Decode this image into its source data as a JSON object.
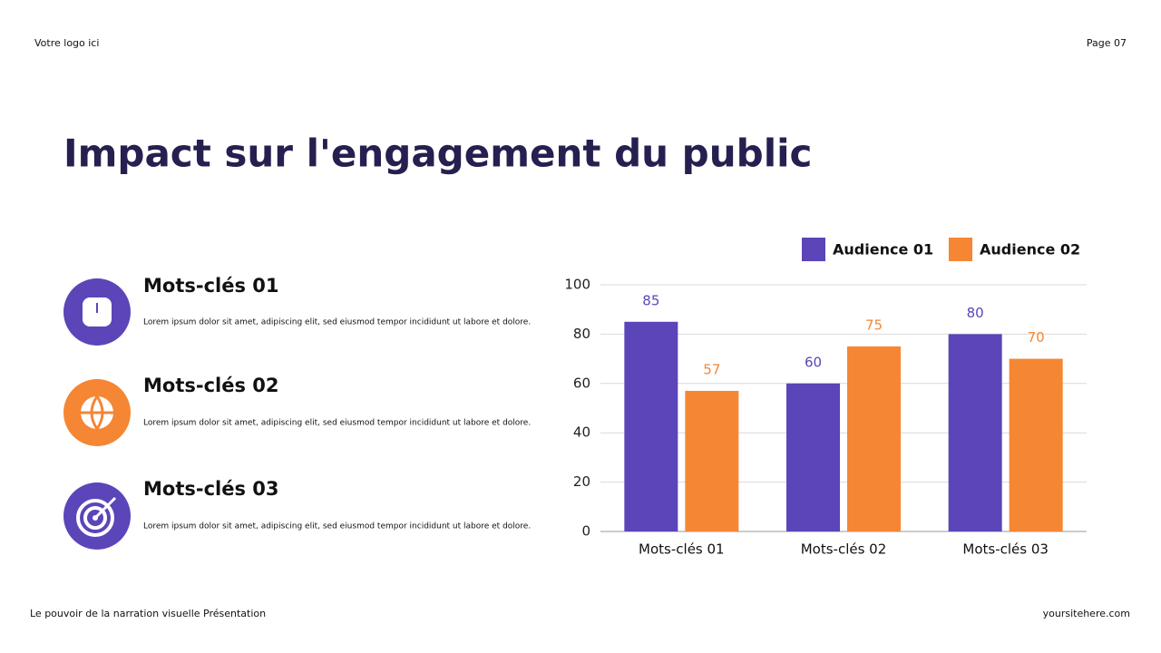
{
  "header": {
    "logo": "Votre logo ici",
    "page": "Page 07"
  },
  "title": "Impact sur l'engagement du public",
  "items": [
    {
      "title": "Mots-clés 01",
      "text": "Lorem ipsum dolor sit amet, adipiscing elit, sed eiusmod tempor incididunt ut labore et dolore."
    },
    {
      "title": "Mots-clés 02",
      "text": "Lorem ipsum dolor sit amet, adipiscing elit, sed eiusmod tempor incididunt ut labore et dolore."
    },
    {
      "title": "Mots-clés 03",
      "text": "Lorem ipsum dolor sit amet, adipiscing elit, sed eiusmod tempor incididunt ut labore et dolore."
    }
  ],
  "chart_data": {
    "type": "bar",
    "categories": [
      "Mots-clés 01",
      "Mots-clés 02",
      "Mots-clés 03"
    ],
    "series": [
      {
        "name": "Audience 01",
        "color": "#5b45b8",
        "values": [
          85,
          60,
          80
        ]
      },
      {
        "name": "Audience 02",
        "color": "#f58634",
        "values": [
          57,
          75,
          70
        ]
      }
    ],
    "ylim": [
      0,
      100
    ],
    "yticks": [
      0,
      20,
      40,
      60,
      80,
      100
    ],
    "grid": true,
    "legend": "top-right"
  },
  "footer": {
    "left": "Le pouvoir de la narration visuelle Présentation",
    "right": "yoursitehere.com"
  }
}
